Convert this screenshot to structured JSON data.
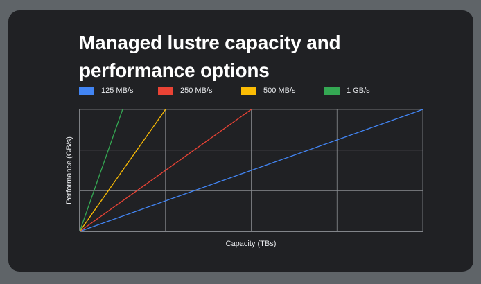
{
  "chart_data": {
    "type": "line",
    "title": "Managed lustre capacity and performance options",
    "xlabel": "Capacity (TBs)",
    "ylabel": "Performance (GB/s)",
    "xlim": [
      0,
      4
    ],
    "ylim": [
      0,
      3
    ],
    "x_gridlines": 4,
    "y_gridlines": 3,
    "tick_labels_shown": false,
    "grid": true,
    "legend_position": "top",
    "series": [
      {
        "name": "125 MB/s",
        "color": "#4285f4",
        "x": [
          0,
          4
        ],
        "y": [
          0,
          3
        ]
      },
      {
        "name": "250 MB/s",
        "color": "#ea4335",
        "x": [
          0,
          2
        ],
        "y": [
          0,
          3
        ]
      },
      {
        "name": "500 MB/s",
        "color": "#fbbc04",
        "x": [
          0,
          1
        ],
        "y": [
          0,
          3
        ]
      },
      {
        "name": "1 GB/s",
        "color": "#34a853",
        "x": [
          0,
          0.5
        ],
        "y": [
          0,
          3
        ]
      }
    ]
  }
}
